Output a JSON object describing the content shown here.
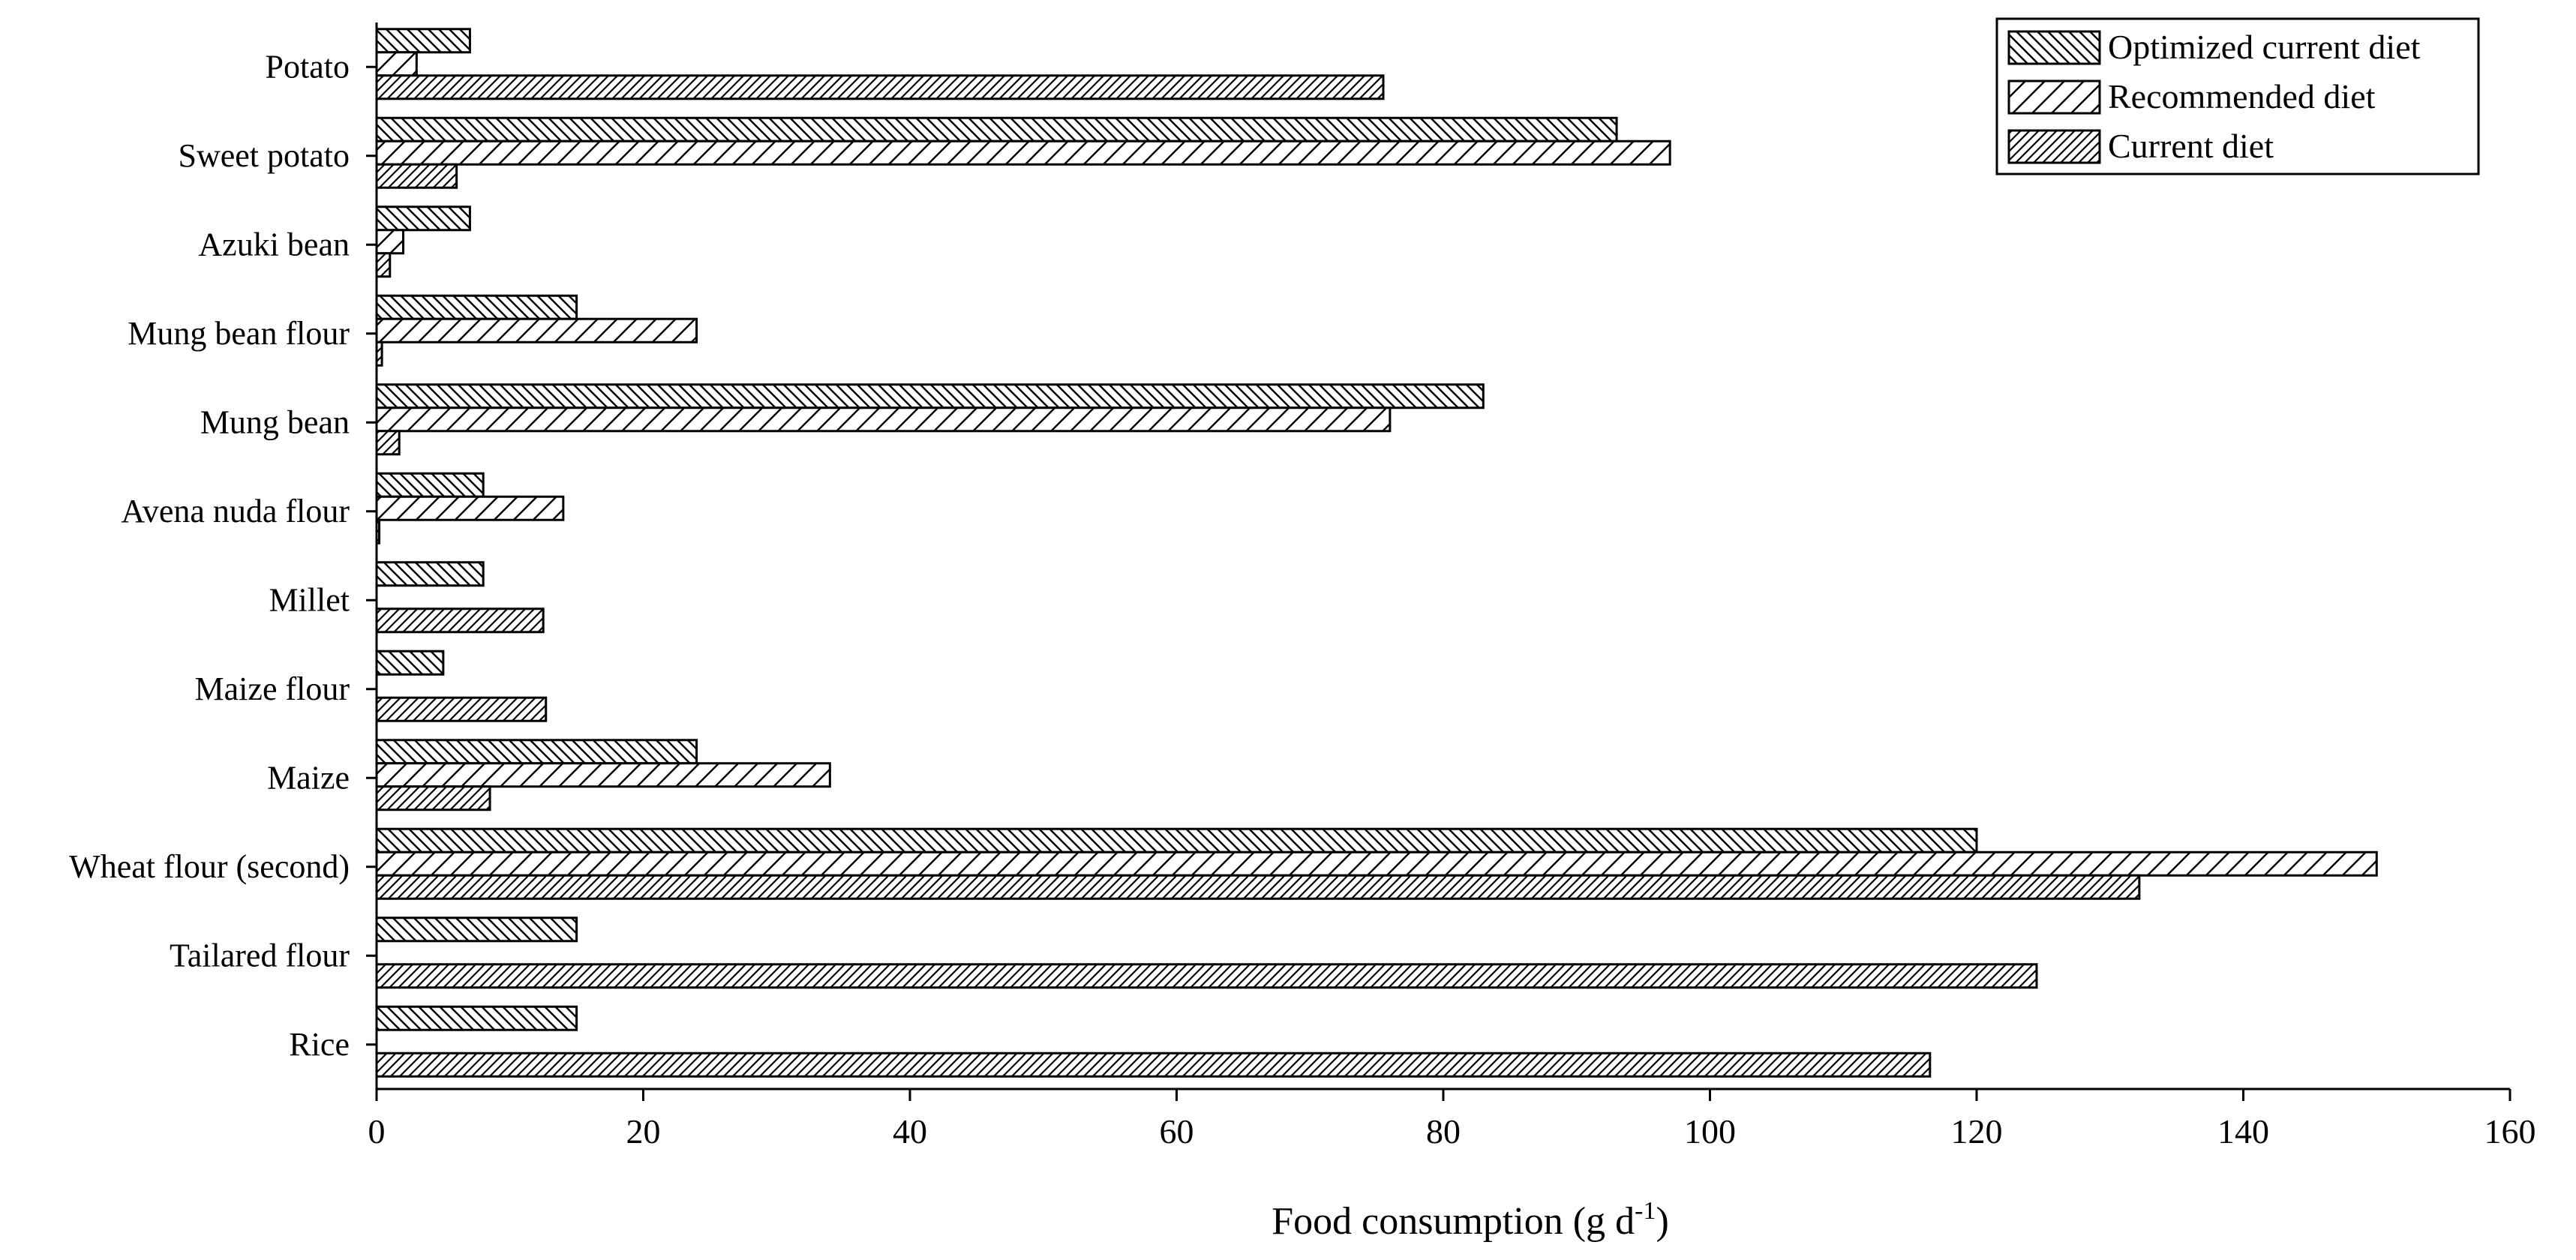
{
  "chart_data": {
    "type": "bar",
    "orientation": "horizontal",
    "categories": [
      "Potato",
      "Sweet potato",
      "Azuki bean",
      "Mung bean flour",
      "Mung bean",
      "Avena nuda flour",
      "Millet",
      "Maize flour",
      "Maize",
      "Wheat flour (second)",
      "Tailared flour",
      "Rice"
    ],
    "series": [
      {
        "name": "Optimized current diet",
        "pattern": "backslash",
        "values": [
          7,
          93,
          7,
          15,
          83,
          8,
          8,
          5,
          24,
          120,
          15,
          15
        ]
      },
      {
        "name": "Recommended diet",
        "pattern": "slash-open",
        "values": [
          3,
          97,
          2,
          24,
          76,
          14,
          0,
          0,
          34,
          150,
          0,
          0
        ]
      },
      {
        "name": "Current diet",
        "pattern": "slash-dense",
        "values": [
          75.5,
          6,
          1,
          0.4,
          1.7,
          0.2,
          12.5,
          12.7,
          8.5,
          132.2,
          124.5,
          116.5
        ]
      }
    ],
    "xlabel": "Food consumption (g d",
    "xlabel_sup": "-1",
    "xlabel_close": ")",
    "xlim": [
      0,
      160
    ],
    "xticks": [
      0,
      20,
      40,
      60,
      80,
      100,
      120,
      140,
      160
    ],
    "grid": false,
    "legend_position": "top-right"
  },
  "colors": {
    "stroke": "#000000",
    "background": "#ffffff"
  }
}
